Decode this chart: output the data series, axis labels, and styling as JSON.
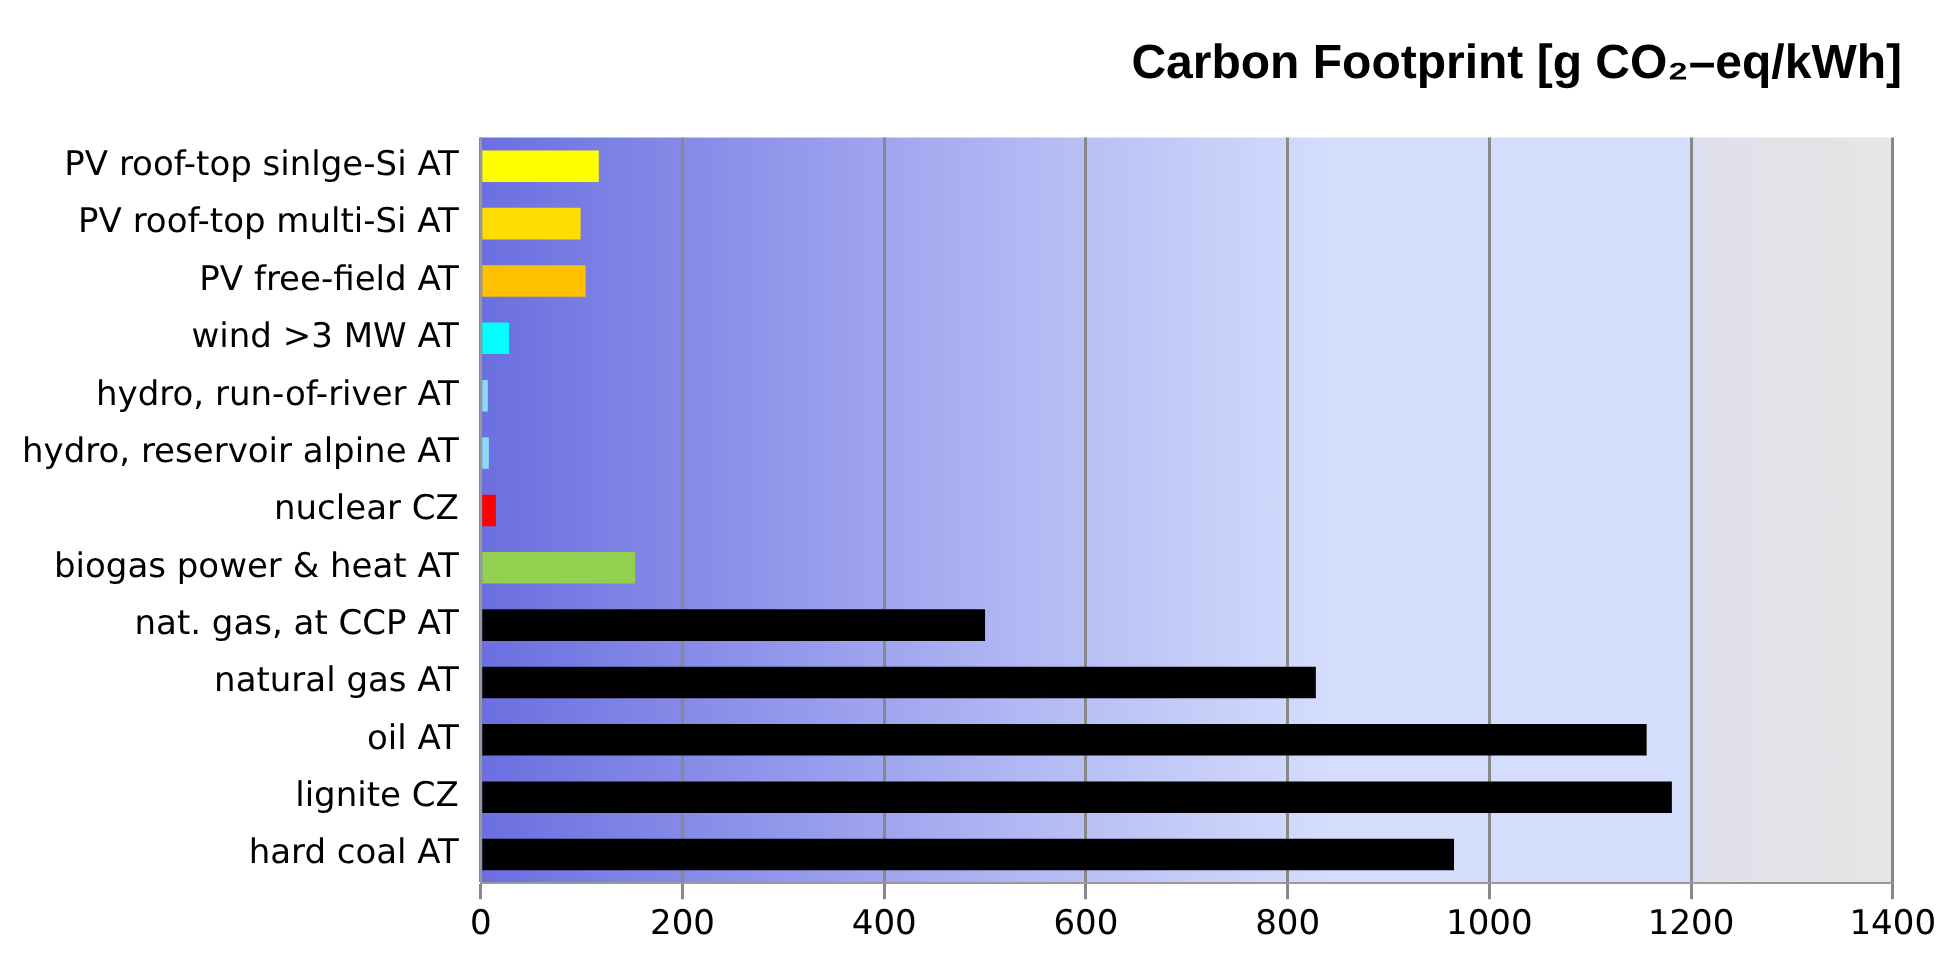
{
  "chart_data": {
    "type": "bar",
    "orientation": "horizontal",
    "title": "Carbon Footprint [g CO₂–eq/kWh]",
    "categories": [
      "PV roof-top sinlge-Si AT",
      "PV roof-top multi-Si AT",
      "PV free-field AT",
      "wind >3 MW AT",
      "hydro, run-of-river AT",
      "hydro, reservoir alpine AT",
      "nuclear CZ",
      "biogas power & heat AT",
      "nat. gas, at CCP AT",
      "natural gas AT",
      "oil AT",
      "lignite CZ",
      "hard coal AT"
    ],
    "values": [
      117,
      99,
      104,
      28,
      7,
      8,
      15,
      153,
      500,
      828,
      1156,
      1181,
      965
    ],
    "colors": [
      "#ffff00",
      "#ffdd00",
      "#ffc000",
      "#00ffff",
      "#8ed8f8",
      "#8ed8f8",
      "#ff0000",
      "#92d050",
      "#000000",
      "#000000",
      "#000000",
      "#000000",
      "#000000"
    ],
    "xlim": [
      0,
      1400
    ],
    "xticks": [
      0,
      200,
      400,
      600,
      800,
      1000,
      1200,
      1400
    ],
    "grid": "x",
    "legend": false
  }
}
